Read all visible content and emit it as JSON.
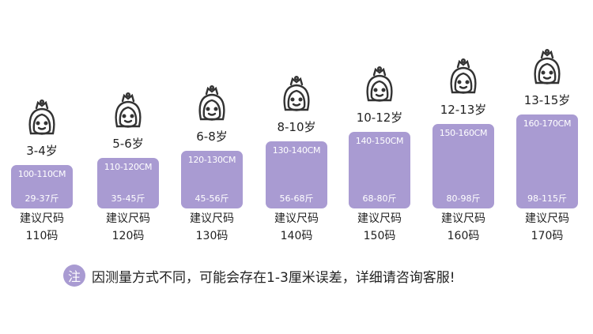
{
  "accent_color": "#a99bd2",
  "sizes": [
    {
      "age": "3-4岁",
      "height": "100-110CM",
      "weight": "29-37斤",
      "label": "建议尺码",
      "size": "110码"
    },
    {
      "age": "5-6岁",
      "height": "110-120CM",
      "weight": "35-45斤",
      "label": "建议尺码",
      "size": "120码"
    },
    {
      "age": "6-8岁",
      "height": "120-130CM",
      "weight": "45-56斤",
      "label": "建议尺码",
      "size": "130码"
    },
    {
      "age": "8-10岁",
      "height": "130-140CM",
      "weight": "56-68斤",
      "label": "建议尺码",
      "size": "140码"
    },
    {
      "age": "10-12岁",
      "height": "140-150CM",
      "weight": "68-80斤",
      "label": "建议尺码",
      "size": "150码"
    },
    {
      "age": "12-13岁",
      "height": "150-160CM",
      "weight": "80-98斤",
      "label": "建议尺码",
      "size": "160码"
    },
    {
      "age": "13-15岁",
      "height": "160-170CM",
      "weight": "98-115斤",
      "label": "建议尺码",
      "size": "170码"
    }
  ],
  "note": {
    "badge": "注",
    "text": "因测量方式不同，可能会存在1-3厘米误差，详细请咨询客服!"
  }
}
